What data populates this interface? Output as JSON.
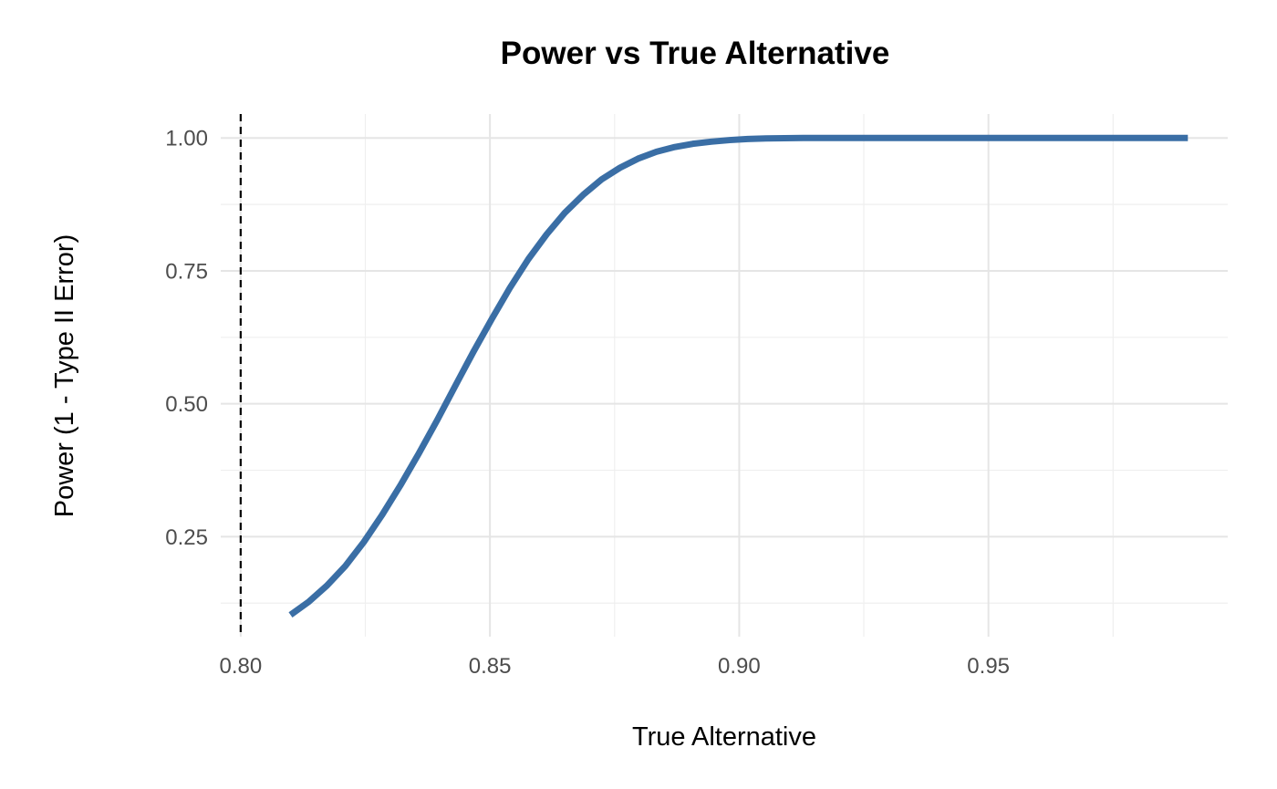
{
  "chart_data": {
    "type": "line",
    "title": "Power vs True Alternative",
    "xlabel": "True Alternative",
    "ylabel": "Power (1 - Type II Error)",
    "xlim": [
      0.796,
      0.998
    ],
    "ylim": [
      0.062,
      1.045
    ],
    "x_ticks": [
      0.8,
      0.85,
      0.9,
      0.95
    ],
    "x_tick_labels": [
      "0.80",
      "0.85",
      "0.90",
      "0.95"
    ],
    "x_minor_ticks": [
      0.825,
      0.875,
      0.925,
      0.975
    ],
    "y_ticks": [
      0.25,
      0.5,
      0.75,
      1.0
    ],
    "y_tick_labels": [
      "0.25",
      "0.50",
      "0.75",
      "1.00"
    ],
    "y_minor_ticks": [
      0.125,
      0.375,
      0.625,
      0.875
    ],
    "grid": true,
    "reference_line": {
      "x": 0.8,
      "style": "dashed",
      "color": "#000000"
    },
    "series": [
      {
        "color": "#3a6ea5",
        "x": [
          0.81,
          0.8137,
          0.8173,
          0.821,
          0.8247,
          0.8283,
          0.832,
          0.8357,
          0.8394,
          0.843,
          0.8467,
          0.8504,
          0.854,
          0.8577,
          0.8614,
          0.865,
          0.8687,
          0.8724,
          0.8761,
          0.8797,
          0.8834,
          0.8871,
          0.8907,
          0.8944,
          0.8981,
          0.9017,
          0.9054,
          0.9091,
          0.9128,
          0.9164,
          0.9201,
          0.9238,
          0.9274,
          0.9311,
          0.9348,
          0.9384,
          0.9421,
          0.9458,
          0.9495,
          0.9531,
          0.9568,
          0.9605,
          0.9641,
          0.9678,
          0.9715,
          0.9751,
          0.9788,
          0.9825,
          0.9862,
          0.99
        ],
        "values": [
          0.103,
          0.128,
          0.158,
          0.195,
          0.24,
          0.29,
          0.346,
          0.406,
          0.469,
          0.533,
          0.598,
          0.66,
          0.718,
          0.772,
          0.819,
          0.859,
          0.893,
          0.922,
          0.944,
          0.961,
          0.974,
          0.983,
          0.989,
          0.993,
          0.996,
          0.998,
          0.999,
          0.9995,
          1.0,
          1.0,
          1.0,
          1.0,
          1.0,
          1.0,
          1.0,
          1.0,
          1.0,
          1.0,
          1.0,
          1.0,
          1.0,
          1.0,
          1.0,
          1.0,
          1.0,
          1.0,
          1.0,
          1.0,
          1.0,
          1.0
        ]
      }
    ]
  }
}
